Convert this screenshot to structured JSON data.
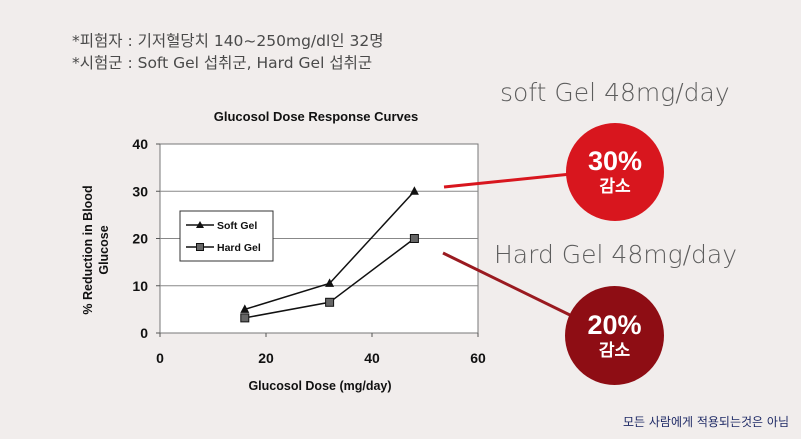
{
  "header": {
    "line1": "*피험자 : 기저혈당치 140~250mg/dl인 32명",
    "line2": "*시험군 : Soft Gel 섭취군, Hard Gel 섭취군"
  },
  "callouts": {
    "soft_label": "soft Gel 48mg/day",
    "soft_badge_pct": "30%",
    "soft_badge_text": "감소",
    "hard_label": "Hard Gel 48mg/day",
    "hard_badge_pct": "20%",
    "hard_badge_text": "감소"
  },
  "colors": {
    "soft_badge": "#d8161e",
    "hard_badge": "#8e0d14",
    "soft_line": "#d8161e",
    "hard_line": "#9a1a20"
  },
  "footnote": "모든 사람에게 적용되는것은 아님",
  "chart_data": {
    "type": "line",
    "title": "Glucosol Dose Response Curves",
    "xlabel": "Glucosol Dose (mg/day)",
    "ylabel": "% Reduction in Blood Glucose",
    "xlim": [
      0,
      60
    ],
    "ylim": [
      0,
      40
    ],
    "xticks": [
      0,
      20,
      40,
      60
    ],
    "yticks": [
      0,
      10,
      20,
      30,
      40
    ],
    "grid": true,
    "legend_position": "center-left",
    "series": [
      {
        "name": "Soft Gel",
        "marker": "triangle",
        "x": [
          16,
          32,
          48
        ],
        "values": [
          5,
          10.5,
          30
        ]
      },
      {
        "name": "Hard Gel",
        "marker": "square",
        "x": [
          16,
          32,
          48
        ],
        "values": [
          3.2,
          6.5,
          20
        ]
      }
    ]
  }
}
